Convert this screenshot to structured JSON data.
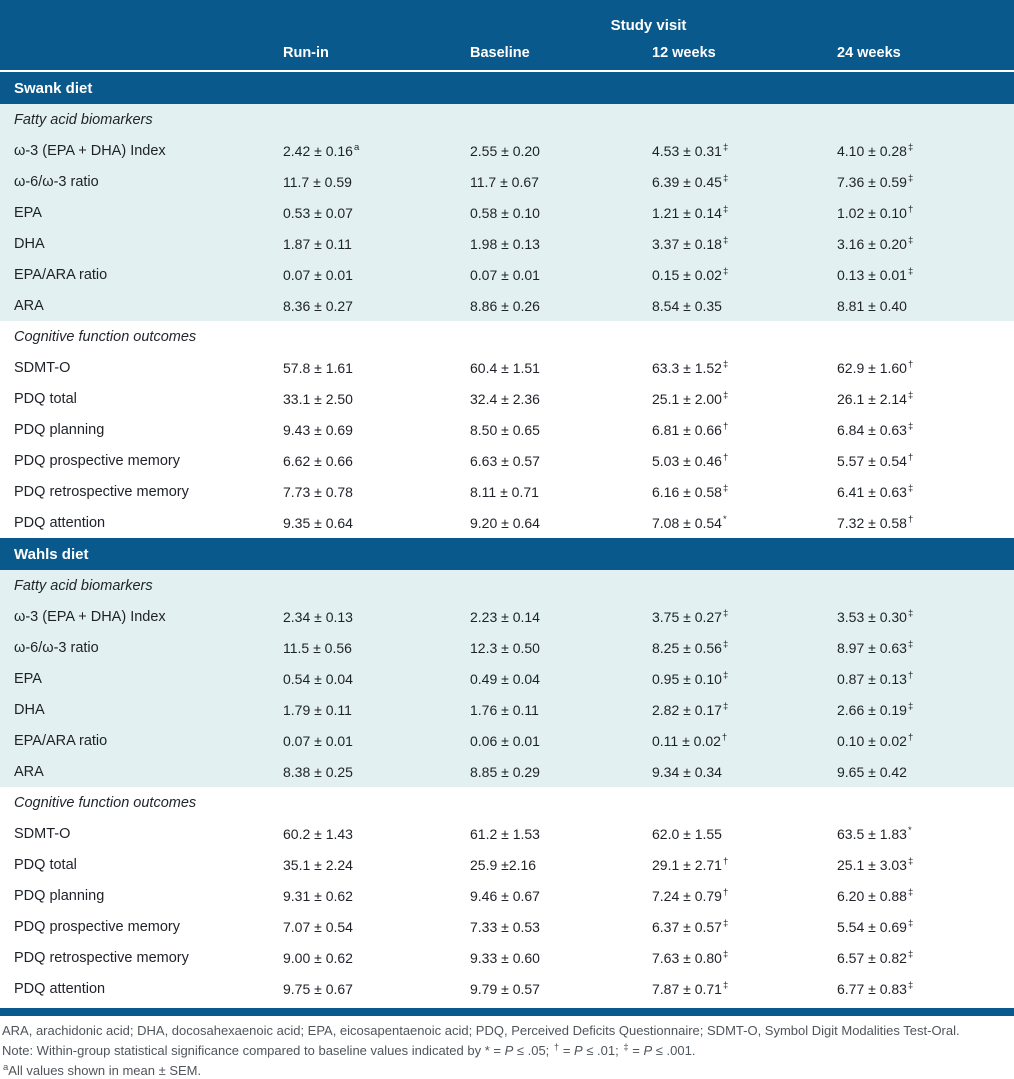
{
  "table": {
    "spanner": "Study visit",
    "columns": [
      "Run-in",
      "Baseline",
      "12 weeks",
      "24 weeks"
    ],
    "accent_color": "#0a598c",
    "tint_color": "#e2f0f2",
    "sections": [
      {
        "title": "Swank diet",
        "groups": [
          {
            "subtitle": "Fatty acid biomarkers",
            "tint": "blue",
            "rows": [
              {
                "label": "ω-3 (EPA + DHA) Index",
                "cells": [
                  [
                    "2.42 ± 0.16",
                    "a"
                  ],
                  [
                    "2.55 ± 0.20",
                    ""
                  ],
                  [
                    "4.53 ± 0.31",
                    "‡"
                  ],
                  [
                    "4.10 ± 0.28",
                    "‡"
                  ]
                ]
              },
              {
                "label": "ω-6/ω-3 ratio",
                "cells": [
                  [
                    "11.7 ± 0.59",
                    ""
                  ],
                  [
                    "11.7 ± 0.67",
                    ""
                  ],
                  [
                    "6.39 ± 0.45",
                    "‡"
                  ],
                  [
                    "7.36 ± 0.59",
                    "‡"
                  ]
                ]
              },
              {
                "label": "EPA",
                "cells": [
                  [
                    "0.53 ± 0.07",
                    ""
                  ],
                  [
                    "0.58 ± 0.10",
                    ""
                  ],
                  [
                    "1.21 ± 0.14",
                    "‡"
                  ],
                  [
                    "1.02 ± 0.10",
                    "†"
                  ]
                ]
              },
              {
                "label": "DHA",
                "cells": [
                  [
                    "1.87 ± 0.11",
                    ""
                  ],
                  [
                    "1.98 ± 0.13",
                    ""
                  ],
                  [
                    "3.37 ± 0.18",
                    "‡"
                  ],
                  [
                    "3.16 ± 0.20",
                    "‡"
                  ]
                ]
              },
              {
                "label": "EPA/ARA ratio",
                "cells": [
                  [
                    "0.07 ± 0.01",
                    ""
                  ],
                  [
                    "0.07 ± 0.01",
                    ""
                  ],
                  [
                    "0.15 ± 0.02",
                    "‡"
                  ],
                  [
                    "0.13 ± 0.01",
                    "‡"
                  ]
                ]
              },
              {
                "label": "ARA",
                "cells": [
                  [
                    "8.36 ± 0.27",
                    ""
                  ],
                  [
                    "8.86 ± 0.26",
                    ""
                  ],
                  [
                    "8.54 ± 0.35",
                    ""
                  ],
                  [
                    "8.81 ± 0.40",
                    ""
                  ]
                ]
              }
            ]
          },
          {
            "subtitle": "Cognitive function outcomes",
            "tint": "white",
            "rows": [
              {
                "label": "SDMT-O",
                "cells": [
                  [
                    "57.8 ± 1.61",
                    ""
                  ],
                  [
                    "60.4 ± 1.51",
                    ""
                  ],
                  [
                    "63.3 ± 1.52",
                    "‡"
                  ],
                  [
                    "62.9 ± 1.60",
                    "†"
                  ]
                ]
              },
              {
                "label": "PDQ total",
                "cells": [
                  [
                    "33.1 ± 2.50",
                    ""
                  ],
                  [
                    "32.4 ± 2.36",
                    ""
                  ],
                  [
                    "25.1 ± 2.00",
                    "‡"
                  ],
                  [
                    "26.1 ± 2.14",
                    "‡"
                  ]
                ]
              },
              {
                "label": "PDQ planning",
                "cells": [
                  [
                    "9.43 ± 0.69",
                    ""
                  ],
                  [
                    "8.50 ± 0.65",
                    ""
                  ],
                  [
                    "6.81 ± 0.66",
                    "†"
                  ],
                  [
                    "6.84 ± 0.63",
                    "‡"
                  ]
                ]
              },
              {
                "label": "PDQ prospective memory",
                "cells": [
                  [
                    "6.62 ± 0.66",
                    ""
                  ],
                  [
                    "6.63 ± 0.57",
                    ""
                  ],
                  [
                    "5.03 ± 0.46",
                    "†"
                  ],
                  [
                    "5.57 ± 0.54",
                    "†"
                  ]
                ]
              },
              {
                "label": "PDQ retrospective memory",
                "cells": [
                  [
                    "7.73 ± 0.78",
                    ""
                  ],
                  [
                    "8.11 ± 0.71",
                    ""
                  ],
                  [
                    "6.16 ± 0.58",
                    "‡"
                  ],
                  [
                    "6.41 ± 0.63",
                    "‡"
                  ]
                ]
              },
              {
                "label": "PDQ attention",
                "cells": [
                  [
                    "9.35 ± 0.64",
                    ""
                  ],
                  [
                    "9.20 ± 0.64",
                    ""
                  ],
                  [
                    "7.08 ± 0.54",
                    "*"
                  ],
                  [
                    "7.32 ± 0.58",
                    "†"
                  ]
                ]
              }
            ]
          }
        ]
      },
      {
        "title": "Wahls diet",
        "groups": [
          {
            "subtitle": "Fatty acid biomarkers",
            "tint": "blue",
            "rows": [
              {
                "label": "ω-3 (EPA + DHA) Index",
                "cells": [
                  [
                    "2.34 ± 0.13",
                    ""
                  ],
                  [
                    "2.23 ± 0.14",
                    ""
                  ],
                  [
                    "3.75 ± 0.27",
                    "‡"
                  ],
                  [
                    "3.53 ± 0.30",
                    "‡"
                  ]
                ]
              },
              {
                "label": "ω-6/ω-3 ratio",
                "cells": [
                  [
                    "11.5 ± 0.56",
                    ""
                  ],
                  [
                    "12.3 ± 0.50",
                    ""
                  ],
                  [
                    "8.25 ± 0.56",
                    "‡"
                  ],
                  [
                    "8.97 ± 0.63",
                    "‡"
                  ]
                ]
              },
              {
                "label": "EPA",
                "cells": [
                  [
                    "0.54 ± 0.04",
                    ""
                  ],
                  [
                    "0.49 ± 0.04",
                    ""
                  ],
                  [
                    "0.95 ± 0.10",
                    "‡"
                  ],
                  [
                    "0.87 ± 0.13",
                    "†"
                  ]
                ]
              },
              {
                "label": "DHA",
                "cells": [
                  [
                    "1.79 ± 0.11",
                    ""
                  ],
                  [
                    "1.76 ± 0.11",
                    ""
                  ],
                  [
                    "2.82 ± 0.17",
                    "‡"
                  ],
                  [
                    "2.66 ± 0.19",
                    "‡"
                  ]
                ]
              },
              {
                "label": "EPA/ARA ratio",
                "cells": [
                  [
                    "0.07 ± 0.01",
                    ""
                  ],
                  [
                    "0.06 ± 0.01",
                    ""
                  ],
                  [
                    "0.11 ± 0.02",
                    "†"
                  ],
                  [
                    "0.10 ± 0.02",
                    "†"
                  ]
                ]
              },
              {
                "label": "ARA",
                "cells": [
                  [
                    "8.38 ± 0.25",
                    ""
                  ],
                  [
                    "8.85 ± 0.29",
                    ""
                  ],
                  [
                    "9.34 ± 0.34",
                    ""
                  ],
                  [
                    "9.65 ± 0.42",
                    ""
                  ]
                ]
              }
            ]
          },
          {
            "subtitle": "Cognitive function outcomes",
            "tint": "white",
            "rows": [
              {
                "label": "SDMT-O",
                "cells": [
                  [
                    "60.2 ± 1.43",
                    ""
                  ],
                  [
                    "61.2 ± 1.53",
                    ""
                  ],
                  [
                    "62.0 ± 1.55",
                    ""
                  ],
                  [
                    "63.5 ± 1.83",
                    "*"
                  ]
                ]
              },
              {
                "label": "PDQ total",
                "cells": [
                  [
                    "35.1 ± 2.24",
                    ""
                  ],
                  [
                    "25.9 ±2.16",
                    ""
                  ],
                  [
                    "29.1 ± 2.71",
                    "†"
                  ],
                  [
                    "25.1 ± 3.03",
                    "‡"
                  ]
                ]
              },
              {
                "label": "PDQ planning",
                "cells": [
                  [
                    "9.31 ± 0.62",
                    ""
                  ],
                  [
                    "9.46 ± 0.67",
                    ""
                  ],
                  [
                    "7.24 ± 0.79",
                    "†"
                  ],
                  [
                    "6.20 ± 0.88",
                    "‡"
                  ]
                ]
              },
              {
                "label": "PDQ prospective memory",
                "cells": [
                  [
                    "7.07 ± 0.54",
                    ""
                  ],
                  [
                    "7.33 ± 0.53",
                    ""
                  ],
                  [
                    "6.37 ± 0.57",
                    "‡"
                  ],
                  [
                    "5.54 ± 0.69",
                    "‡"
                  ]
                ]
              },
              {
                "label": "PDQ retrospective memory",
                "cells": [
                  [
                    "9.00 ± 0.62",
                    ""
                  ],
                  [
                    "9.33 ± 0.60",
                    ""
                  ],
                  [
                    "7.63 ± 0.80",
                    "‡"
                  ],
                  [
                    "6.57 ± 0.82",
                    "‡"
                  ]
                ]
              },
              {
                "label": "PDQ attention",
                "cells": [
                  [
                    "9.75 ± 0.67",
                    ""
                  ],
                  [
                    "9.79 ± 0.57",
                    ""
                  ],
                  [
                    "7.87 ± 0.71",
                    "‡"
                  ],
                  [
                    "6.77 ± 0.83",
                    "‡"
                  ]
                ]
              }
            ]
          }
        ]
      }
    ],
    "footnotes": [
      [
        {
          "t": "ARA, arachidonic acid; DHA, docosahexaenoic acid; EPA, eicosapentaenoic acid; PDQ, Perceived Deficits Questionnaire; SDMT-O, Symbol Digit Modalities Test-Oral."
        }
      ],
      [
        {
          "t": "Note: Within-group statistical significance compared to baseline values indicated by * = "
        },
        {
          "t": "P",
          "i": 1
        },
        {
          "t": " ≤ .05; "
        },
        {
          "t": "†",
          "s": 1
        },
        {
          "t": " = "
        },
        {
          "t": "P",
          "i": 1
        },
        {
          "t": " ≤ .01; "
        },
        {
          "t": "‡",
          "s": 1
        },
        {
          "t": " = "
        },
        {
          "t": "P",
          "i": 1
        },
        {
          "t": " ≤ .001."
        }
      ],
      [
        {
          "t": "a",
          "s": 1
        },
        {
          "t": "All values shown in mean ± SEM."
        }
      ]
    ]
  }
}
